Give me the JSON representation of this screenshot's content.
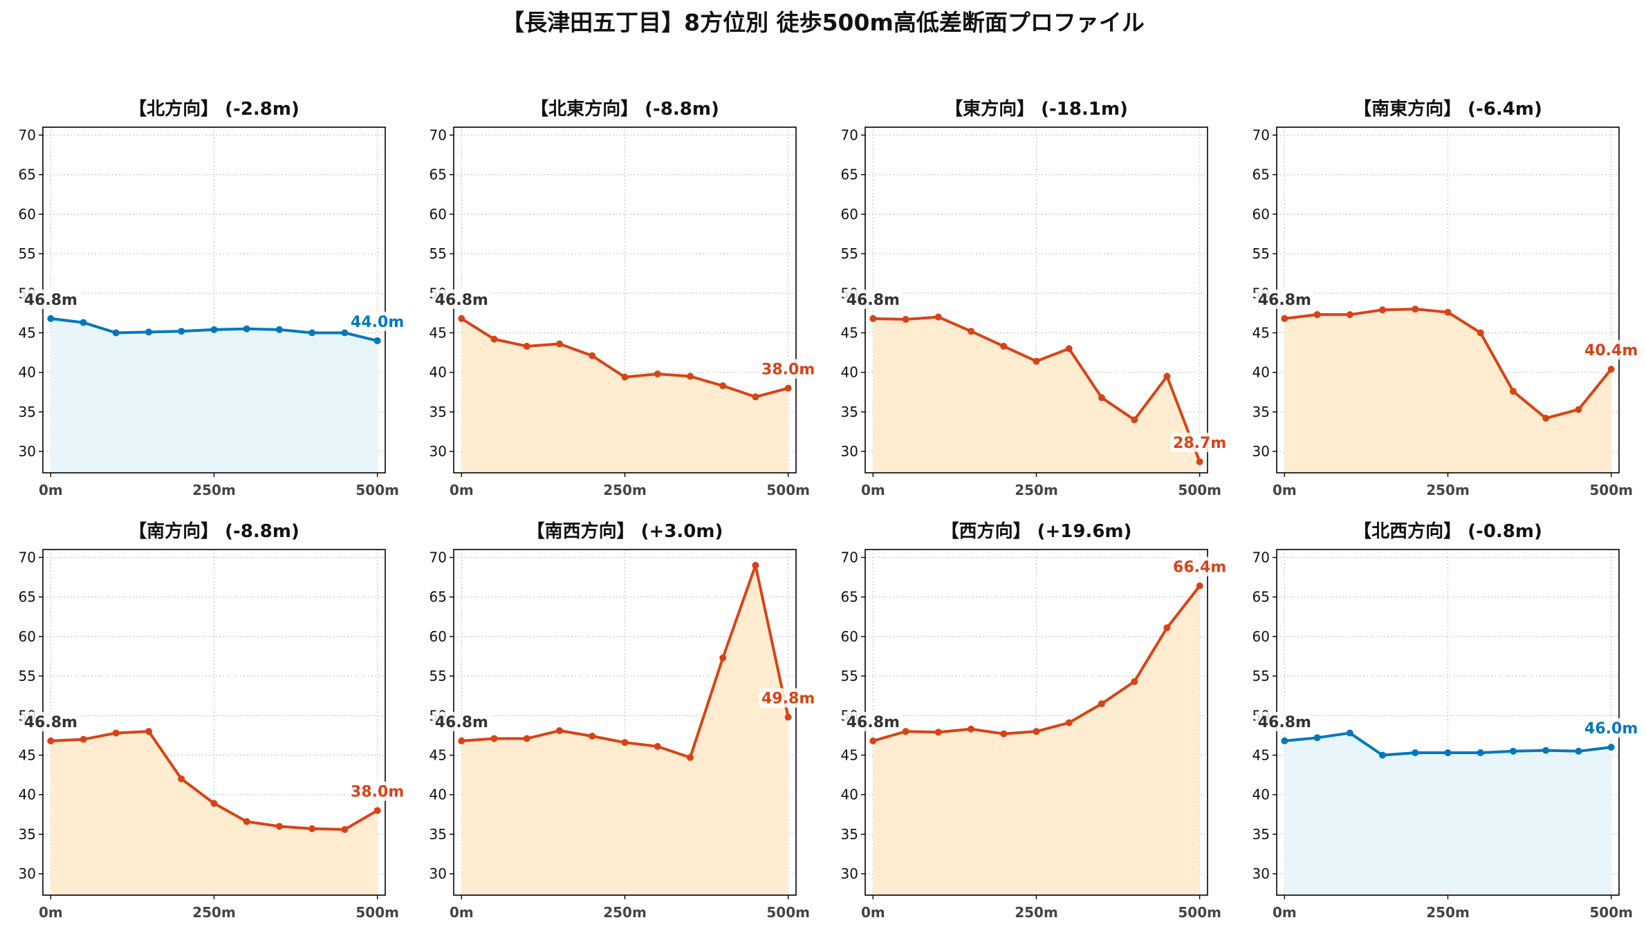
{
  "title": "【長津田五丁目】8方位別 徒歩500m高低差断面プロファイル",
  "colors": {
    "down_line": "#d84315",
    "down_fill": "#ffecd1",
    "flat_line": "#0277bd",
    "flat_fill": "#e8f6fb",
    "start_label": "#333333"
  },
  "chart_data": [
    {
      "type": "area",
      "title": "【北方向】 (-2.8m)",
      "trend": "flat",
      "x": [
        0,
        50,
        100,
        150,
        200,
        250,
        300,
        350,
        400,
        450,
        500
      ],
      "values": [
        46.8,
        46.3,
        45.0,
        45.1,
        45.2,
        45.4,
        45.5,
        45.4,
        45.0,
        45.0,
        44.0
      ],
      "start_label": "46.8m",
      "end_label": "44.0m",
      "x_ticks": [
        "0m",
        "250m",
        "500m"
      ],
      "y_ticks": [
        30,
        35,
        40,
        45,
        50,
        55,
        60,
        65,
        70
      ],
      "ylim": [
        27.3,
        71
      ],
      "xlim": [
        -12,
        512
      ],
      "grid": true
    },
    {
      "type": "area",
      "title": "【北東方向】 (-8.8m)",
      "trend": "down",
      "x": [
        0,
        50,
        100,
        150,
        200,
        250,
        300,
        350,
        400,
        450,
        500
      ],
      "values": [
        46.8,
        44.2,
        43.3,
        43.6,
        42.1,
        39.4,
        39.8,
        39.5,
        38.3,
        36.9,
        38.0
      ],
      "start_label": "46.8m",
      "end_label": "38.0m",
      "x_ticks": [
        "0m",
        "250m",
        "500m"
      ],
      "y_ticks": [
        30,
        35,
        40,
        45,
        50,
        55,
        60,
        65,
        70
      ],
      "ylim": [
        27.3,
        71
      ],
      "xlim": [
        -12,
        512
      ],
      "grid": true
    },
    {
      "type": "area",
      "title": "【東方向】 (-18.1m)",
      "trend": "down",
      "x": [
        0,
        50,
        100,
        150,
        200,
        250,
        300,
        350,
        400,
        450,
        500
      ],
      "values": [
        46.8,
        46.7,
        47.0,
        45.2,
        43.3,
        41.4,
        43.0,
        36.8,
        34.0,
        39.5,
        28.7
      ],
      "start_label": "46.8m",
      "end_label": "28.7m",
      "x_ticks": [
        "0m",
        "250m",
        "500m"
      ],
      "y_ticks": [
        30,
        35,
        40,
        45,
        50,
        55,
        60,
        65,
        70
      ],
      "ylim": [
        27.3,
        71
      ],
      "xlim": [
        -12,
        512
      ],
      "grid": true
    },
    {
      "type": "area",
      "title": "【南東方向】 (-6.4m)",
      "trend": "down",
      "x": [
        0,
        50,
        100,
        150,
        200,
        250,
        300,
        350,
        400,
        450,
        500
      ],
      "values": [
        46.8,
        47.3,
        47.3,
        47.9,
        48.0,
        47.6,
        45.0,
        37.6,
        34.2,
        35.3,
        40.4
      ],
      "start_label": "46.8m",
      "end_label": "40.4m",
      "x_ticks": [
        "0m",
        "250m",
        "500m"
      ],
      "y_ticks": [
        30,
        35,
        40,
        45,
        50,
        55,
        60,
        65,
        70
      ],
      "ylim": [
        27.3,
        71
      ],
      "xlim": [
        -12,
        512
      ],
      "grid": true
    },
    {
      "type": "area",
      "title": "【南方向】 (-8.8m)",
      "trend": "down",
      "x": [
        0,
        50,
        100,
        150,
        200,
        250,
        300,
        350,
        400,
        450,
        500
      ],
      "values": [
        46.8,
        47.0,
        47.8,
        48.0,
        42.0,
        38.9,
        36.6,
        36.0,
        35.7,
        35.6,
        38.0
      ],
      "start_label": "46.8m",
      "end_label": "38.0m",
      "x_ticks": [
        "0m",
        "250m",
        "500m"
      ],
      "y_ticks": [
        30,
        35,
        40,
        45,
        50,
        55,
        60,
        65,
        70
      ],
      "ylim": [
        27.3,
        71
      ],
      "xlim": [
        -12,
        512
      ],
      "grid": true
    },
    {
      "type": "area",
      "title": "【南西方向】 (+3.0m)",
      "trend": "down",
      "x": [
        0,
        50,
        100,
        150,
        200,
        250,
        300,
        350,
        400,
        450,
        500
      ],
      "values": [
        46.8,
        47.1,
        47.1,
        48.1,
        47.4,
        46.6,
        46.1,
        44.7,
        57.3,
        69.0,
        49.8
      ],
      "start_label": "46.8m",
      "end_label": "49.8m",
      "x_ticks": [
        "0m",
        "250m",
        "500m"
      ],
      "y_ticks": [
        30,
        35,
        40,
        45,
        50,
        55,
        60,
        65,
        70
      ],
      "ylim": [
        27.3,
        71
      ],
      "xlim": [
        -12,
        512
      ],
      "grid": true
    },
    {
      "type": "area",
      "title": "【西方向】 (+19.6m)",
      "trend": "down",
      "x": [
        0,
        50,
        100,
        150,
        200,
        250,
        300,
        350,
        400,
        450,
        500
      ],
      "values": [
        46.8,
        48.0,
        47.9,
        48.3,
        47.7,
        48.0,
        49.1,
        51.5,
        54.3,
        61.1,
        66.4
      ],
      "start_label": "46.8m",
      "end_label": "66.4m",
      "x_ticks": [
        "0m",
        "250m",
        "500m"
      ],
      "y_ticks": [
        30,
        35,
        40,
        45,
        50,
        55,
        60,
        65,
        70
      ],
      "ylim": [
        27.3,
        71
      ],
      "xlim": [
        -12,
        512
      ],
      "grid": true
    },
    {
      "type": "area",
      "title": "【北西方向】 (-0.8m)",
      "trend": "flat",
      "x": [
        0,
        50,
        100,
        150,
        200,
        250,
        300,
        350,
        400,
        450,
        500
      ],
      "values": [
        46.8,
        47.2,
        47.8,
        45.0,
        45.3,
        45.3,
        45.3,
        45.5,
        45.6,
        45.5,
        46.0
      ],
      "start_label": "46.8m",
      "end_label": "46.0m",
      "x_ticks": [
        "0m",
        "250m",
        "500m"
      ],
      "y_ticks": [
        30,
        35,
        40,
        45,
        50,
        55,
        60,
        65,
        70
      ],
      "ylim": [
        27.3,
        71
      ],
      "xlim": [
        -12,
        512
      ],
      "grid": true
    }
  ]
}
